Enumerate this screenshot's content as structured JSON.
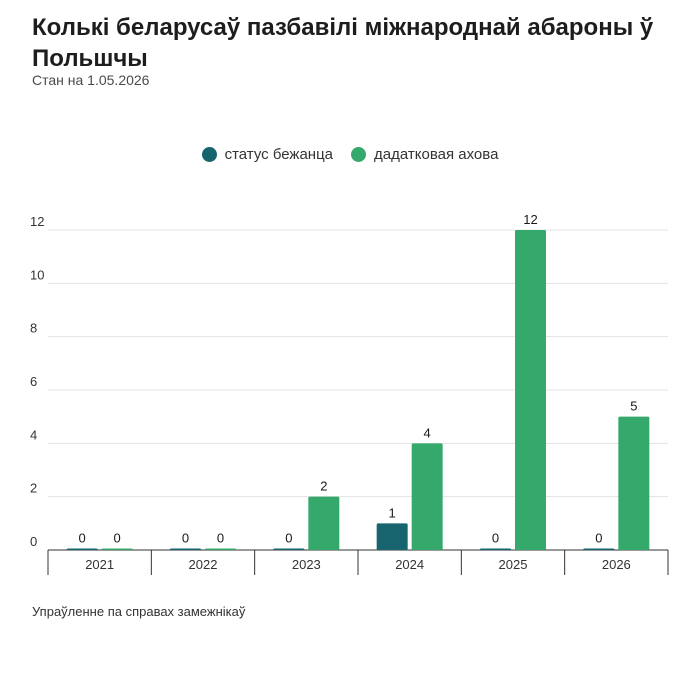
{
  "title": "Колькі беларусаў пазбавілі міжнароднай абароны ў Польшчы",
  "subtitle": "Стан на 1.05.2026",
  "source": "Упраўленне па справах замежнікаў",
  "legend": [
    {
      "label": "статус бежанца",
      "color": "#17646f"
    },
    {
      "label": "дадатковая ахова",
      "color": "#35a86b"
    }
  ],
  "chart_data": {
    "type": "bar",
    "title": "Колькі беларусаў пазбавілі міжнароднай абароны ў Польшчы",
    "subtitle": "Стан на 1.05.2026",
    "categories": [
      "2021",
      "2022",
      "2023",
      "2024",
      "2025",
      "2026"
    ],
    "series": [
      {
        "name": "статус бежанца",
        "color": "#17646f",
        "values": [
          0,
          0,
          0,
          1,
          0,
          0
        ]
      },
      {
        "name": "дадатковая ахова",
        "color": "#35a86b",
        "values": [
          0,
          0,
          2,
          4,
          12,
          5
        ]
      }
    ],
    "yticks": [
      "0",
      "2",
      "4",
      "6",
      "8",
      "10",
      "12"
    ],
    "ylim": [
      0,
      12
    ],
    "grid": true,
    "legend_position": "top-center",
    "data_labels": true
  }
}
